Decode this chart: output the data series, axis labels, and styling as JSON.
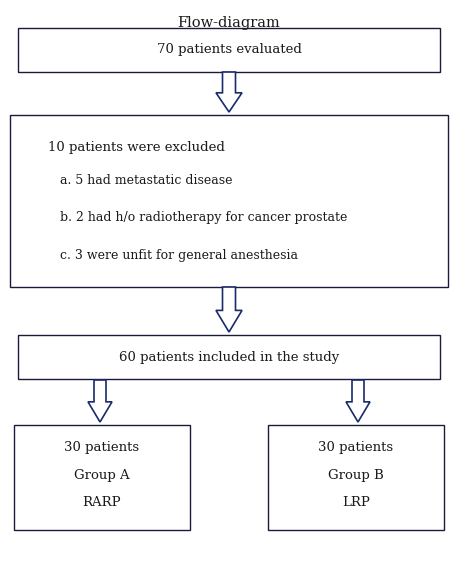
{
  "title": "Flow-diagram",
  "title_fontsize": 10.5,
  "box_edgecolor": "#1a1a3a",
  "text_color": "#1a1a1a",
  "arrow_color": "#1a2a6a",
  "box1_text": "70 patients evaluated",
  "box2_line0": "10 patients were excluded",
  "box2_lines": [
    "a. 5 had metastatic disease",
    "b. 2 had h/o radiotherapy for cancer prostate",
    "c. 3 were unfit for general anesthesia"
  ],
  "box3_text": "60 patients included in the study",
  "box4_text_lines": [
    "30 patients",
    "Group A",
    "RARP"
  ],
  "box5_text_lines": [
    "30 patients",
    "Group B",
    "LRP"
  ],
  "font_family": "DejaVu Serif",
  "main_fontsize": 9.5,
  "excl_title_fontsize": 9.5,
  "excl_sub_fontsize": 9.0
}
